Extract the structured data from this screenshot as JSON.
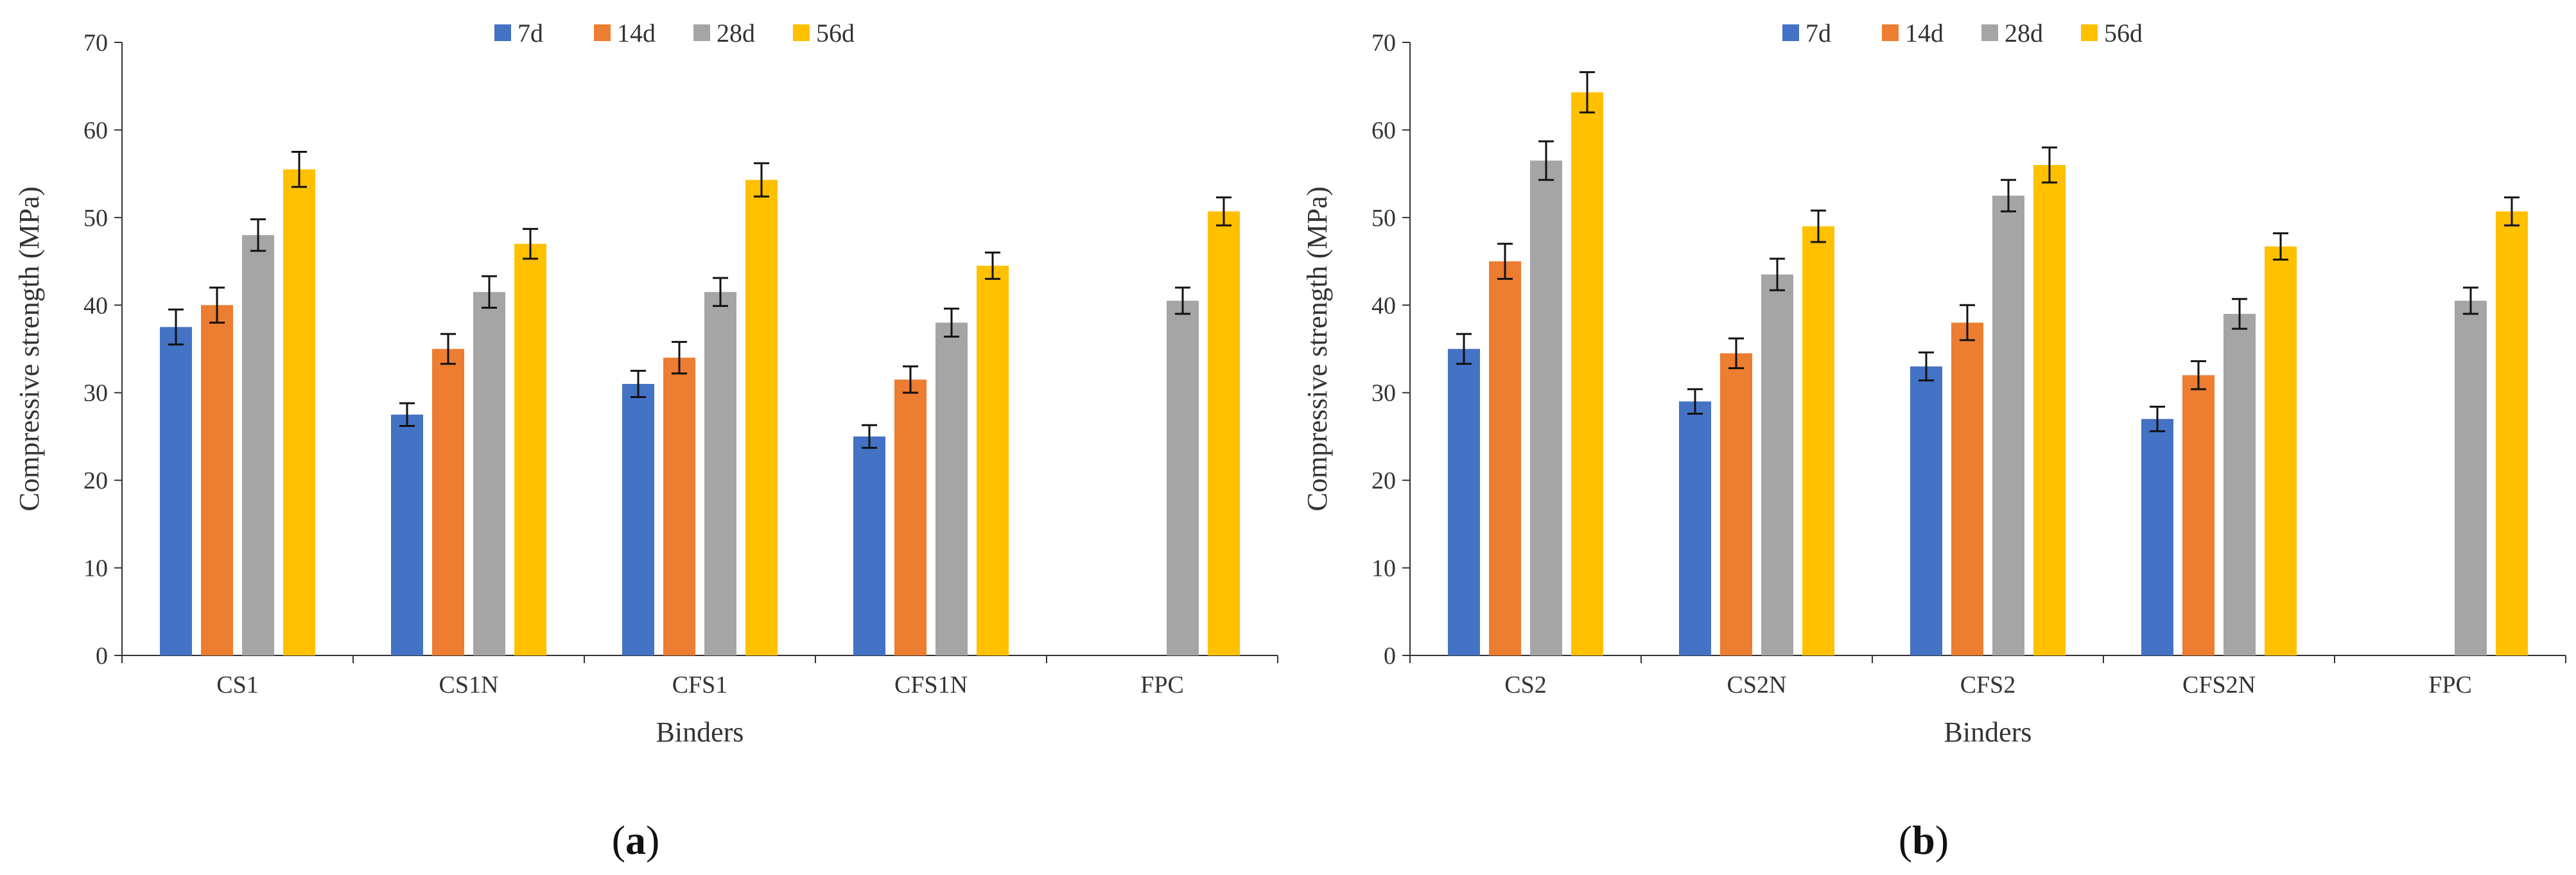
{
  "chart_data": [
    {
      "type": "bar",
      "panel_label": "a",
      "title": "",
      "xlabel": "Binders",
      "ylabel": "Compressive strength (MPa)",
      "ylim": [
        0,
        70
      ],
      "yticks": [
        0,
        10,
        20,
        30,
        40,
        50,
        60,
        70
      ],
      "categories": [
        "CS1",
        "CS1N",
        "CFS1",
        "CFS1N",
        "FPC"
      ],
      "legend_position": "top-center",
      "series": [
        {
          "name": "7d",
          "color": "#4472C4",
          "values": [
            37.5,
            27.5,
            31,
            25,
            null
          ],
          "errors": [
            2,
            1.3,
            1.5,
            1.3,
            null
          ]
        },
        {
          "name": "14d",
          "color": "#ED7D31",
          "values": [
            40,
            35,
            34,
            31.5,
            null
          ],
          "errors": [
            2,
            1.7,
            1.8,
            1.5,
            null
          ]
        },
        {
          "name": "28d",
          "color": "#A5A5A5",
          "values": [
            48,
            41.5,
            41.5,
            38,
            40.5
          ],
          "errors": [
            1.8,
            1.8,
            1.6,
            1.6,
            1.5
          ]
        },
        {
          "name": "56d",
          "color": "#FFC000",
          "values": [
            55.5,
            47,
            54.3,
            44.5,
            50.7
          ],
          "errors": [
            2,
            1.7,
            1.9,
            1.5,
            1.6
          ]
        }
      ]
    },
    {
      "type": "bar",
      "panel_label": "b",
      "title": "",
      "xlabel": "Binders",
      "ylabel": "Compressive strength (MPa)",
      "ylim": [
        0,
        70
      ],
      "yticks": [
        0,
        10,
        20,
        30,
        40,
        50,
        60,
        70
      ],
      "categories": [
        "CS2",
        "CS2N",
        "CFS2",
        "CFS2N",
        "FPC"
      ],
      "legend_position": "top-center",
      "series": [
        {
          "name": "7d",
          "color": "#4472C4",
          "values": [
            35,
            29,
            33,
            27,
            null
          ],
          "errors": [
            1.7,
            1.4,
            1.6,
            1.4,
            null
          ]
        },
        {
          "name": "14d",
          "color": "#ED7D31",
          "values": [
            45,
            34.5,
            38,
            32,
            null
          ],
          "errors": [
            2,
            1.7,
            2,
            1.6,
            null
          ]
        },
        {
          "name": "28d",
          "color": "#A5A5A5",
          "values": [
            56.5,
            43.5,
            52.5,
            39,
            40.5
          ],
          "errors": [
            2.2,
            1.8,
            1.8,
            1.7,
            1.5
          ]
        },
        {
          "name": "56d",
          "color": "#FFC000",
          "values": [
            64.3,
            49,
            56,
            46.7,
            50.7
          ],
          "errors": [
            2.3,
            1.8,
            2,
            1.5,
            1.6
          ]
        }
      ]
    }
  ]
}
